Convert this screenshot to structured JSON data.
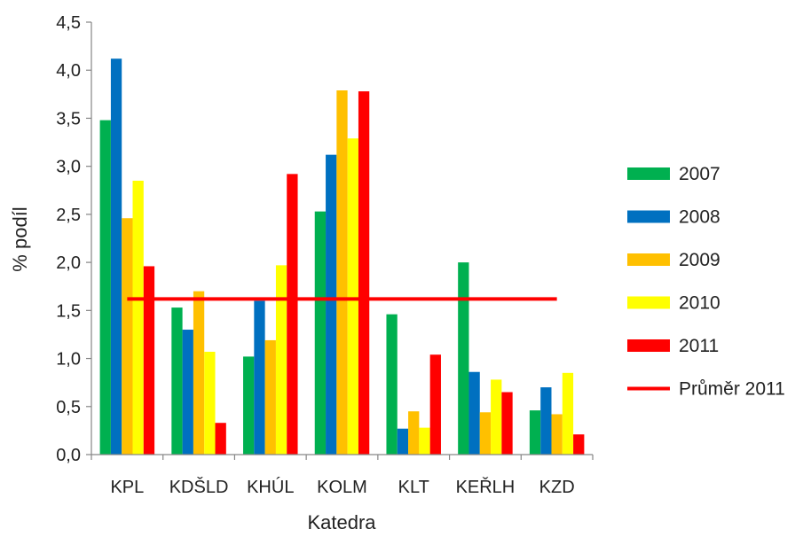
{
  "chart_data": {
    "type": "bar",
    "title": "",
    "xlabel": "Katedra",
    "ylabel": "% podíl",
    "ylim": [
      0,
      4.5
    ],
    "ytick_step": 0.5,
    "ytick_labels": [
      "0,0",
      "0,5",
      "1,0",
      "1,5",
      "2,0",
      "2,5",
      "3,0",
      "3,5",
      "4,0",
      "4,5"
    ],
    "categories": [
      "KPL",
      "KDŠLD",
      "KHÚL",
      "KOLM",
      "KLT",
      "KEŘLH",
      "KZD"
    ],
    "series": [
      {
        "name": "2007",
        "color": "#00b050",
        "values": [
          3.48,
          1.53,
          1.02,
          2.53,
          1.46,
          2.0,
          0.46
        ]
      },
      {
        "name": "2008",
        "color": "#0070c0",
        "values": [
          4.12,
          1.3,
          1.6,
          3.12,
          0.27,
          0.86,
          0.7
        ]
      },
      {
        "name": "2009",
        "color": "#ffc000",
        "values": [
          2.46,
          1.7,
          1.19,
          3.79,
          0.45,
          0.44,
          0.42
        ]
      },
      {
        "name": "2010",
        "color": "#ffff00",
        "values": [
          2.85,
          1.07,
          1.97,
          3.29,
          0.28,
          0.78,
          0.85
        ]
      },
      {
        "name": "2011",
        "color": "#ff0000",
        "values": [
          1.96,
          0.33,
          2.92,
          3.78,
          1.04,
          0.65,
          0.21
        ]
      }
    ],
    "reference_line": {
      "name": "Průměr 2011",
      "color": "#ff0000",
      "value": 1.62
    },
    "grid": false,
    "legend_position": "right"
  }
}
